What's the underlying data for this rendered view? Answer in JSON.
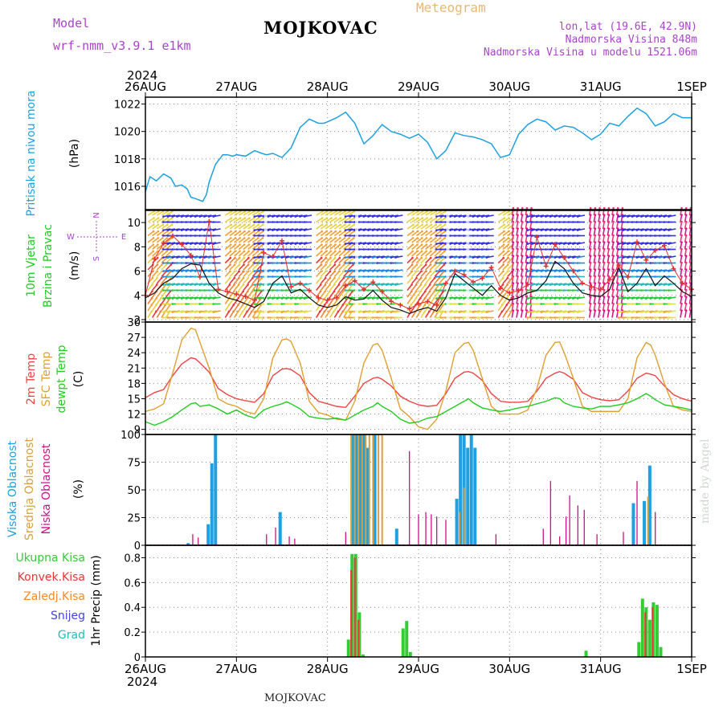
{
  "header": {
    "model_label": "Model",
    "model_name": "wrf-nmm_v3.9.1  e1km",
    "title": "MOJKOVAC",
    "subtitle": "Meteogram",
    "coords": "lon,lat (19.6E, 42.9N)",
    "altitude": "Nadmorska Visina 848m",
    "model_altitude": "Nadmorska Visina u modelu 1521.06m",
    "footer_title": "MOJKOVAC",
    "credit": "made by Angel"
  },
  "colors": {
    "pressure": "#1fa0e0",
    "temp2m": "#ee4444",
    "sfc": "#e0a030",
    "dewpt": "#22cc22",
    "high": "#1fa0e0",
    "mid": "#d8a040",
    "low": "#cc1188",
    "total": "#33cc33",
    "conv": "#ee3333",
    "frz": "#ff8822",
    "snow": "#4444dd",
    "grad": "#22bbbb",
    "purple": "#aa44cc"
  },
  "time_axis": {
    "year": "2024",
    "labels": [
      "26AUG",
      "27AUG",
      "28AUG",
      "29AUG",
      "30AUG",
      "31AUG",
      "1SEP"
    ],
    "days": 6
  },
  "chart_data": [
    {
      "type": "line",
      "panel": "pressure",
      "ylabel_main": "Pritisak na nivou mora",
      "unit": "(hPa)",
      "ylim": [
        1014.3,
        1022.5
      ],
      "yticks": [
        1016,
        1018,
        1020,
        1022
      ],
      "grid": true,
      "x_days": [
        0,
        0.05,
        0.12,
        0.2,
        0.28,
        0.33,
        0.4,
        0.46,
        0.5,
        0.55,
        0.63,
        0.67,
        0.7,
        0.77,
        0.85,
        0.9,
        0.96,
        1.0,
        1.1,
        1.2,
        1.28,
        1.33,
        1.4,
        1.5,
        1.6,
        1.7,
        1.8,
        1.9,
        1.96,
        2.0,
        2.1,
        2.2,
        2.3,
        2.4,
        2.5,
        2.6,
        2.7,
        2.8,
        2.9,
        3.0,
        3.1,
        3.2,
        3.3,
        3.4,
        3.5,
        3.6,
        3.7,
        3.8,
        3.9,
        4.0,
        4.1,
        4.2,
        4.3,
        4.4,
        4.5,
        4.6,
        4.7,
        4.8,
        4.9,
        5.0,
        5.1,
        5.2,
        5.3,
        5.4,
        5.5,
        5.6,
        5.7,
        5.8,
        5.9,
        6.0
      ],
      "values": [
        1015.6,
        1016.7,
        1016.4,
        1016.9,
        1016.6,
        1016.0,
        1016.1,
        1015.8,
        1015.2,
        1015.1,
        1014.9,
        1015.4,
        1016.3,
        1017.6,
        1018.3,
        1018.3,
        1018.2,
        1018.3,
        1018.2,
        1018.6,
        1018.4,
        1018.3,
        1018.4,
        1018.1,
        1018.8,
        1020.3,
        1020.9,
        1020.6,
        1020.6,
        1020.7,
        1021.0,
        1021.4,
        1020.6,
        1019.1,
        1019.7,
        1020.5,
        1020.0,
        1019.8,
        1019.5,
        1019.8,
        1019.2,
        1018.0,
        1018.6,
        1019.9,
        1019.7,
        1019.6,
        1019.4,
        1019.1,
        1018.1,
        1018.3,
        1019.8,
        1020.5,
        1020.9,
        1020.7,
        1020.1,
        1020.4,
        1020.3,
        1019.9,
        1019.4,
        1019.8,
        1020.6,
        1020.4,
        1021.1,
        1021.7,
        1021.3,
        1020.4,
        1020.7,
        1021.3,
        1021.0,
        1021.0
      ]
    },
    {
      "type": "line",
      "panel": "wind",
      "ylabel_main": "10m Vjetar",
      "ylabel_sub": "Brzina i Pravac",
      "unit": "(m/s)",
      "compass": [
        "N",
        "E",
        "S",
        "W"
      ],
      "ylim": [
        1.8,
        11.0
      ],
      "yticks": [
        2,
        4,
        6,
        8,
        10
      ],
      "grid": true,
      "x_days": [
        0,
        0.1,
        0.2,
        0.3,
        0.4,
        0.5,
        0.6,
        0.7,
        0.8,
        0.9,
        1.0,
        1.1,
        1.2,
        1.3,
        1.4,
        1.5,
        1.6,
        1.7,
        1.8,
        1.9,
        2.0,
        2.1,
        2.2,
        2.3,
        2.4,
        2.5,
        2.6,
        2.7,
        2.8,
        2.9,
        3.0,
        3.1,
        3.2,
        3.3,
        3.4,
        3.5,
        3.6,
        3.7,
        3.8,
        3.9,
        4.0,
        4.1,
        4.2,
        4.3,
        4.4,
        4.5,
        4.6,
        4.7,
        4.8,
        4.9,
        5.0,
        5.1,
        5.2,
        5.3,
        5.4,
        5.5,
        5.6,
        5.7,
        5.8,
        5.9,
        6.0
      ],
      "speed": [
        3.8,
        4.2,
        5.0,
        5.4,
        6.2,
        6.6,
        6.5,
        5.0,
        4.2,
        3.8,
        3.6,
        3.3,
        3.0,
        3.5,
        5.0,
        5.6,
        4.2,
        4.5,
        3.8,
        3.2,
        3.0,
        3.2,
        3.9,
        3.6,
        3.7,
        4.4,
        3.6,
        3.0,
        2.8,
        2.5,
        2.8,
        3.0,
        2.7,
        3.8,
        5.8,
        5.2,
        4.6,
        4.0,
        4.8,
        4.0,
        3.6,
        3.8,
        4.2,
        4.4,
        5.2,
        6.8,
        6.2,
        5.0,
        4.2,
        4.0,
        3.9,
        4.5,
        6.3,
        4.3,
        5.0,
        6.2,
        4.8,
        5.6,
        5.0,
        4.3,
        3.9
      ],
      "gust": [
        4.0,
        7.0,
        8.3,
        8.9,
        8.2,
        7.3,
        5.5,
        10.1,
        4.5,
        4.3,
        4.1,
        3.9,
        3.6,
        7.5,
        7.2,
        8.5,
        4.7,
        5.0,
        4.4,
        3.8,
        3.6,
        3.8,
        4.8,
        5.2,
        4.5,
        5.1,
        4.3,
        3.5,
        3.2,
        2.9,
        3.3,
        3.5,
        3.2,
        5.0,
        6.0,
        5.7,
        5.1,
        5.4,
        6.3,
        4.6,
        4.2,
        4.4,
        4.9,
        8.8,
        6.4,
        8.2,
        7.1,
        6.0,
        5.0,
        4.7,
        4.5,
        5.3,
        6.5,
        5.5,
        8.4,
        6.9,
        7.7,
        8.1,
        6.2,
        5.0,
        4.5
      ]
    },
    {
      "type": "line",
      "panel": "temperature",
      "ylabel_main": "2m Temp",
      "ylabel_sub": "SFC Temp",
      "ylabel_sub2": "dewpt Temp",
      "unit": "(C)",
      "ylim": [
        8.0,
        30.0
      ],
      "yticks": [
        9,
        12,
        15,
        18,
        21,
        24,
        27,
        30
      ],
      "grid": true,
      "x_days": [
        0,
        0.1,
        0.2,
        0.3,
        0.4,
        0.5,
        0.55,
        0.6,
        0.7,
        0.8,
        0.9,
        1.0,
        1.1,
        1.2,
        1.3,
        1.4,
        1.5,
        1.55,
        1.6,
        1.7,
        1.8,
        1.9,
        2.0,
        2.1,
        2.2,
        2.3,
        2.4,
        2.5,
        2.55,
        2.6,
        2.7,
        2.8,
        2.9,
        3.0,
        3.1,
        3.2,
        3.3,
        3.4,
        3.5,
        3.55,
        3.6,
        3.7,
        3.8,
        3.9,
        4.0,
        4.1,
        4.2,
        4.3,
        4.4,
        4.5,
        4.55,
        4.6,
        4.7,
        4.8,
        4.9,
        5.0,
        5.1,
        5.2,
        5.3,
        5.4,
        5.5,
        5.55,
        5.6,
        5.7,
        5.8,
        5.9,
        6.0
      ],
      "series": [
        {
          "name": "2m Temp",
          "color_key": "temp2m",
          "values": [
            15.2,
            16.2,
            16.8,
            19.5,
            21.8,
            23.0,
            22.8,
            22.0,
            20.2,
            17.0,
            15.8,
            15.0,
            14.6,
            14.3,
            16.0,
            19.5,
            20.8,
            20.9,
            20.7,
            19.5,
            16.2,
            14.5,
            14.0,
            13.5,
            13.3,
            15.5,
            18.0,
            19.0,
            19.2,
            18.8,
            17.5,
            15.5,
            14.5,
            13.8,
            13.5,
            13.7,
            16.0,
            19.0,
            20.2,
            20.3,
            20.0,
            18.6,
            16.0,
            14.5,
            14.3,
            14.3,
            14.5,
            16.5,
            19.0,
            20.0,
            20.3,
            20.0,
            18.8,
            16.2,
            15.3,
            14.8,
            14.6,
            14.8,
            16.5,
            19.0,
            20.0,
            19.8,
            19.5,
            17.5,
            15.8,
            15.0,
            14.5
          ]
        },
        {
          "name": "SFC Temp",
          "color_key": "sfc",
          "values": [
            12.5,
            13.0,
            14.0,
            20.0,
            26.5,
            28.8,
            28.5,
            26.0,
            21.0,
            15.0,
            14.0,
            13.5,
            12.5,
            12.0,
            15.0,
            23.0,
            26.5,
            26.7,
            26.2,
            22.0,
            14.5,
            12.3,
            11.8,
            11.0,
            10.8,
            14.5,
            22.0,
            25.5,
            25.8,
            24.5,
            19.0,
            13.0,
            11.5,
            9.5,
            9.0,
            11.0,
            16.5,
            24.0,
            25.8,
            26.0,
            24.5,
            19.0,
            13.5,
            12.0,
            12.0,
            12.0,
            12.8,
            17.0,
            23.5,
            26.0,
            26.1,
            24.0,
            19.0,
            13.5,
            12.5,
            12.5,
            12.5,
            12.5,
            15.0,
            23.0,
            26.0,
            25.5,
            23.5,
            18.0,
            13.5,
            12.8,
            12.5
          ]
        },
        {
          "name": "dewpt Temp",
          "color_key": "dewpt",
          "values": [
            10.5,
            9.8,
            10.5,
            11.5,
            12.8,
            14.0,
            14.2,
            13.5,
            13.8,
            13.0,
            12.0,
            12.8,
            11.8,
            11.2,
            12.8,
            13.5,
            14.0,
            14.4,
            14.0,
            13.0,
            11.5,
            11.2,
            11.0,
            11.2,
            10.8,
            11.8,
            12.8,
            13.5,
            14.2,
            13.5,
            12.5,
            11.0,
            10.2,
            10.5,
            11.2,
            11.5,
            12.5,
            13.5,
            14.5,
            15.0,
            14.2,
            13.2,
            12.8,
            12.5,
            12.8,
            13.2,
            13.5,
            14.0,
            14.5,
            15.2,
            15.0,
            14.2,
            13.5,
            13.2,
            13.0,
            13.5,
            13.5,
            13.8,
            14.2,
            15.0,
            16.0,
            15.5,
            14.8,
            13.8,
            13.5,
            13.2,
            12.8
          ]
        }
      ]
    },
    {
      "type": "bar",
      "panel": "clouds",
      "ylabel_main": "Visoka Oblacnost",
      "ylabel_sub": "Srednja Oblacnost",
      "ylabel_sub2": "Niska Oblacnost",
      "unit": "(%)",
      "ylim": [
        0,
        100
      ],
      "yticks": [
        0,
        25,
        50,
        75,
        100
      ],
      "grid": true,
      "series": [
        {
          "name": "Visoka Oblacnost",
          "color_key": "high",
          "x_days": [
            0.47,
            0.69,
            0.73,
            0.77,
            1.48,
            2.28,
            2.32,
            2.36,
            2.4,
            2.44,
            2.52,
            2.76,
            3.42,
            3.46,
            3.5,
            3.54,
            3.58,
            3.62,
            5.36,
            5.48,
            5.54
          ],
          "values": [
            2,
            19,
            74,
            100,
            30,
            100,
            100,
            100,
            100,
            88,
            100,
            15,
            42,
            100,
            100,
            88,
            100,
            88,
            38,
            40,
            72
          ]
        },
        {
          "name": "Srednja Oblacnost",
          "color_key": "mid",
          "x_days": [
            2.26,
            2.3,
            2.34,
            2.38,
            2.42,
            2.46,
            2.5,
            2.56,
            2.6,
            3.45,
            3.5,
            5.52
          ],
          "values": [
            100,
            100,
            100,
            100,
            100,
            100,
            100,
            100,
            100,
            30,
            52,
            44
          ]
        },
        {
          "name": "Niska Oblacnost",
          "color_key": "low",
          "x_days": [
            0.52,
            0.58,
            1.33,
            1.43,
            1.58,
            1.64,
            2.2,
            2.9,
            3.0,
            3.08,
            3.14,
            3.2,
            3.3,
            3.85,
            4.37,
            4.45,
            4.55,
            4.62,
            4.66,
            4.75,
            4.82,
            4.96,
            5.25,
            5.4,
            5.6
          ],
          "values": [
            10,
            7,
            10,
            16,
            8,
            6,
            12,
            85,
            28,
            30,
            28,
            26,
            23,
            10,
            15,
            58,
            8,
            26,
            45,
            36,
            32,
            10,
            12,
            58,
            30
          ]
        }
      ]
    },
    {
      "type": "bar",
      "panel": "precip",
      "ylabel_main": "1hr Precip",
      "unit": "(mm)",
      "legend": [
        "Ukupna  Kisa",
        "Konvek.Kisa",
        "Zaledj.Kisa",
        "Snijeg",
        "Grad"
      ],
      "ylim": [
        0,
        0.9
      ],
      "yticks": [
        0,
        0.2,
        0.4,
        0.6,
        0.8
      ],
      "grid": true,
      "series": [
        {
          "name": "Ukupna  Kisa",
          "color_key": "total",
          "x_days": [
            2.23,
            2.27,
            2.31,
            2.35,
            2.39,
            2.83,
            2.87,
            2.91,
            4.84,
            5.42,
            5.46,
            5.5,
            5.54,
            5.58,
            5.62,
            5.66
          ],
          "values": [
            0.14,
            0.83,
            0.83,
            0.36,
            0.02,
            0.23,
            0.29,
            0.04,
            0.05,
            0.12,
            0.47,
            0.4,
            0.3,
            0.44,
            0.42,
            0.08
          ]
        },
        {
          "name": "Konvek.Kisa",
          "color_key": "conv",
          "x_days": [
            2.26,
            2.3,
            2.34,
            5.49,
            5.57
          ],
          "values": [
            0.7,
            0.8,
            0.3,
            0.36,
            0.4
          ]
        }
      ]
    }
  ]
}
